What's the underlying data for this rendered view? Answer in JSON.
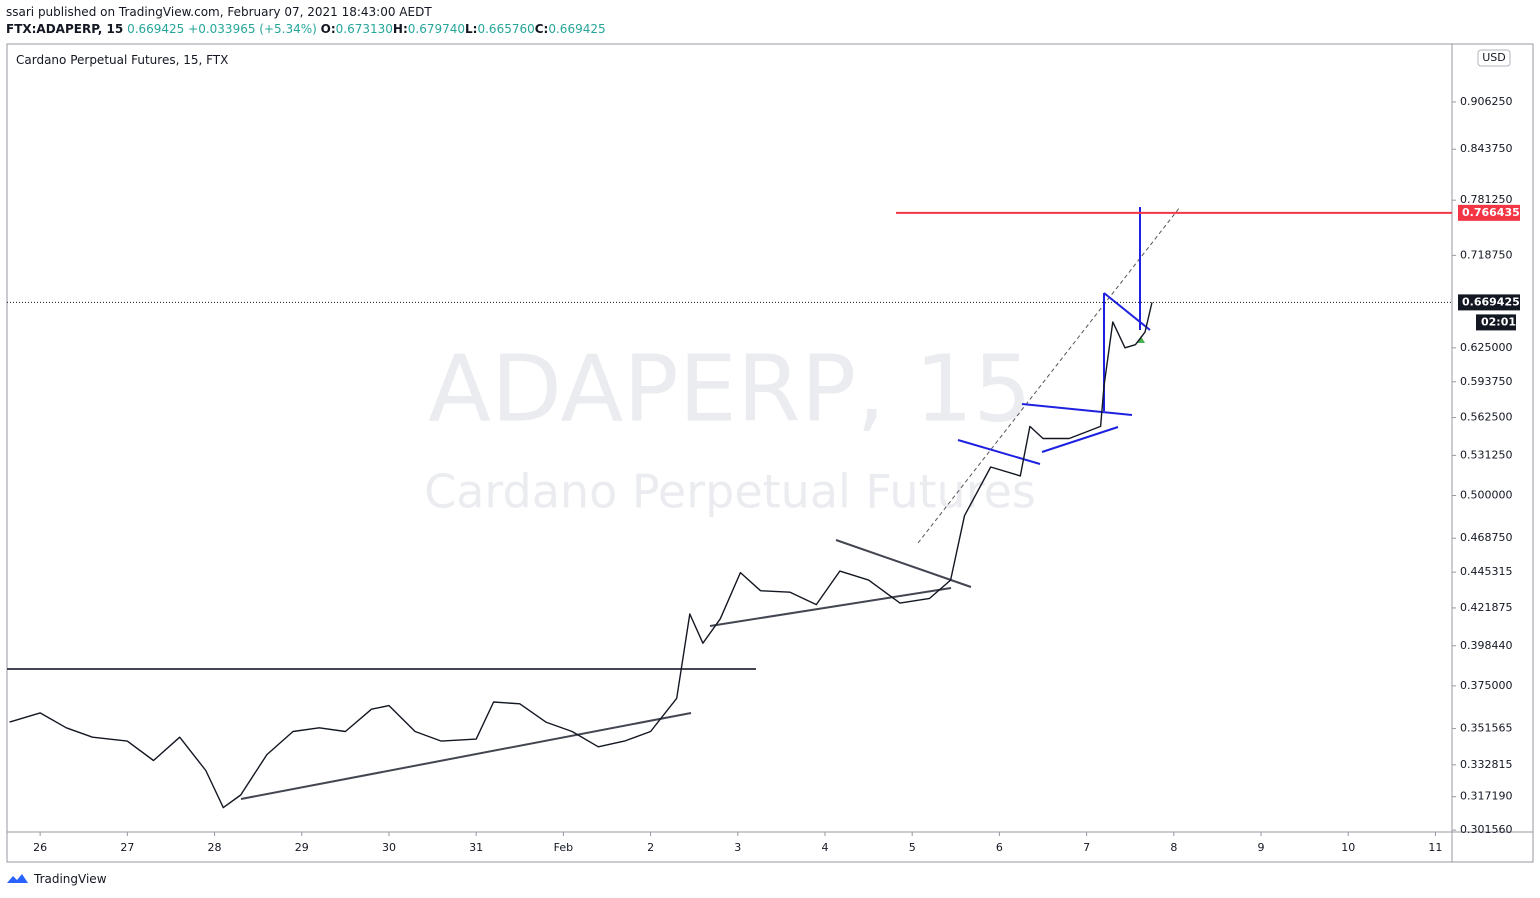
{
  "header": {
    "publisher": "ssari published on TradingView.com, February 07, 2021 18:43:00 AEDT",
    "symbol": "FTX:ADAPERP, 15",
    "last": "0.669425",
    "change": "+0.033965 (+5.34%)",
    "ohlc": [
      {
        "key": "O:",
        "value": "0.673130"
      },
      {
        "key": "H:",
        "value": "0.679740"
      },
      {
        "key": "L:",
        "value": "0.665760"
      },
      {
        "key": "C:",
        "value": "0.669425"
      }
    ]
  },
  "watermark": {
    "symbol": "ADAPERP, 15",
    "name": "Cardano Perpetual Futures"
  },
  "currency": "USD",
  "footer": "TradingView",
  "chart_data": {
    "type": "line",
    "x": [
      -0.35,
      0,
      0.3,
      0.6,
      1,
      1.3,
      1.6,
      1.9,
      2.1,
      2.3,
      2.6,
      2.9,
      3.2,
      3.5,
      3.8,
      4,
      4.3,
      4.6,
      5,
      5.2,
      5.5,
      5.8,
      6.1,
      6.4,
      6.7,
      7,
      7.3,
      7.45,
      7.6,
      7.8,
      8.03,
      8.26,
      8.6,
      8.9,
      9.17,
      9.5,
      9.86,
      10.2,
      10.44,
      10.6,
      10.9,
      11.24,
      11.35,
      11.5,
      11.8,
      12.16,
      12.2,
      12.3,
      12.44,
      12.56,
      12.67,
      12.75
    ],
    "series": [
      {
        "name": "Cardano Perpetual Futures, 15, FTX",
        "color": "#131722",
        "values": [
          0.355,
          0.36,
          0.352,
          0.347,
          0.345,
          0.335,
          0.347,
          0.33,
          0.312,
          0.318,
          0.338,
          0.35,
          0.352,
          0.35,
          0.362,
          0.364,
          0.35,
          0.345,
          0.346,
          0.366,
          0.365,
          0.355,
          0.35,
          0.342,
          0.345,
          0.35,
          0.368,
          0.418,
          0.4,
          0.415,
          0.445,
          0.433,
          0.432,
          0.424,
          0.446,
          0.44,
          0.425,
          0.428,
          0.44,
          0.485,
          0.522,
          0.515,
          0.555,
          0.545,
          0.545,
          0.555,
          0.59,
          0.65,
          0.625,
          0.628,
          0.64,
          0.669425
        ]
      }
    ],
    "xlim": [
      -0.38,
      16.19
    ],
    "xticks": [
      {
        "value": 0,
        "label": "26"
      },
      {
        "value": 1,
        "label": "27"
      },
      {
        "value": 2,
        "label": "28"
      },
      {
        "value": 3,
        "label": "29"
      },
      {
        "value": 4,
        "label": "30"
      },
      {
        "value": 5,
        "label": "31"
      },
      {
        "value": 6,
        "label": "Feb"
      },
      {
        "value": 7,
        "label": "2"
      },
      {
        "value": 8,
        "label": "3"
      },
      {
        "value": 9,
        "label": "4"
      },
      {
        "value": 10,
        "label": "5"
      },
      {
        "value": 11,
        "label": "6"
      },
      {
        "value": 12,
        "label": "7"
      },
      {
        "value": 13,
        "label": "8"
      },
      {
        "value": 14,
        "label": "9"
      },
      {
        "value": 15,
        "label": "10"
      },
      {
        "value": 16,
        "label": "11"
      }
    ],
    "ylim": [
      0.3007,
      0.9892
    ],
    "log_scale": true,
    "grid": false,
    "yticks": [
      {
        "value": 0.90625,
        "label": "0.906250"
      },
      {
        "value": 0.84375,
        "label": "0.843750"
      },
      {
        "value": 0.78125,
        "label": "0.781250"
      },
      {
        "value": 0.71875,
        "label": "0.718750"
      },
      {
        "value": 0.625,
        "label": "0.625000"
      },
      {
        "value": 0.59375,
        "label": "0.593750"
      },
      {
        "value": 0.5625,
        "label": "0.562500"
      },
      {
        "value": 0.53125,
        "label": "0.531250"
      },
      {
        "value": 0.5,
        "label": "0.500000"
      },
      {
        "value": 0.46875,
        "label": "0.468750"
      },
      0.445315,
      0.421875,
      {
        "value": 0.39844,
        "label": "0.398440"
      },
      {
        "value": 0.375,
        "label": "0.375000"
      },
      0.351565,
      0.332815,
      {
        "value": 0.31719,
        "label": "0.317190"
      },
      {
        "value": 0.30156,
        "label": "0.301560"
      }
    ],
    "price_lines": [
      {
        "value": 0.766435,
        "color": "#f23645"
      },
      {
        "value": 0.669425,
        "color": "#131722",
        "countdown": "02:01"
      }
    ]
  }
}
